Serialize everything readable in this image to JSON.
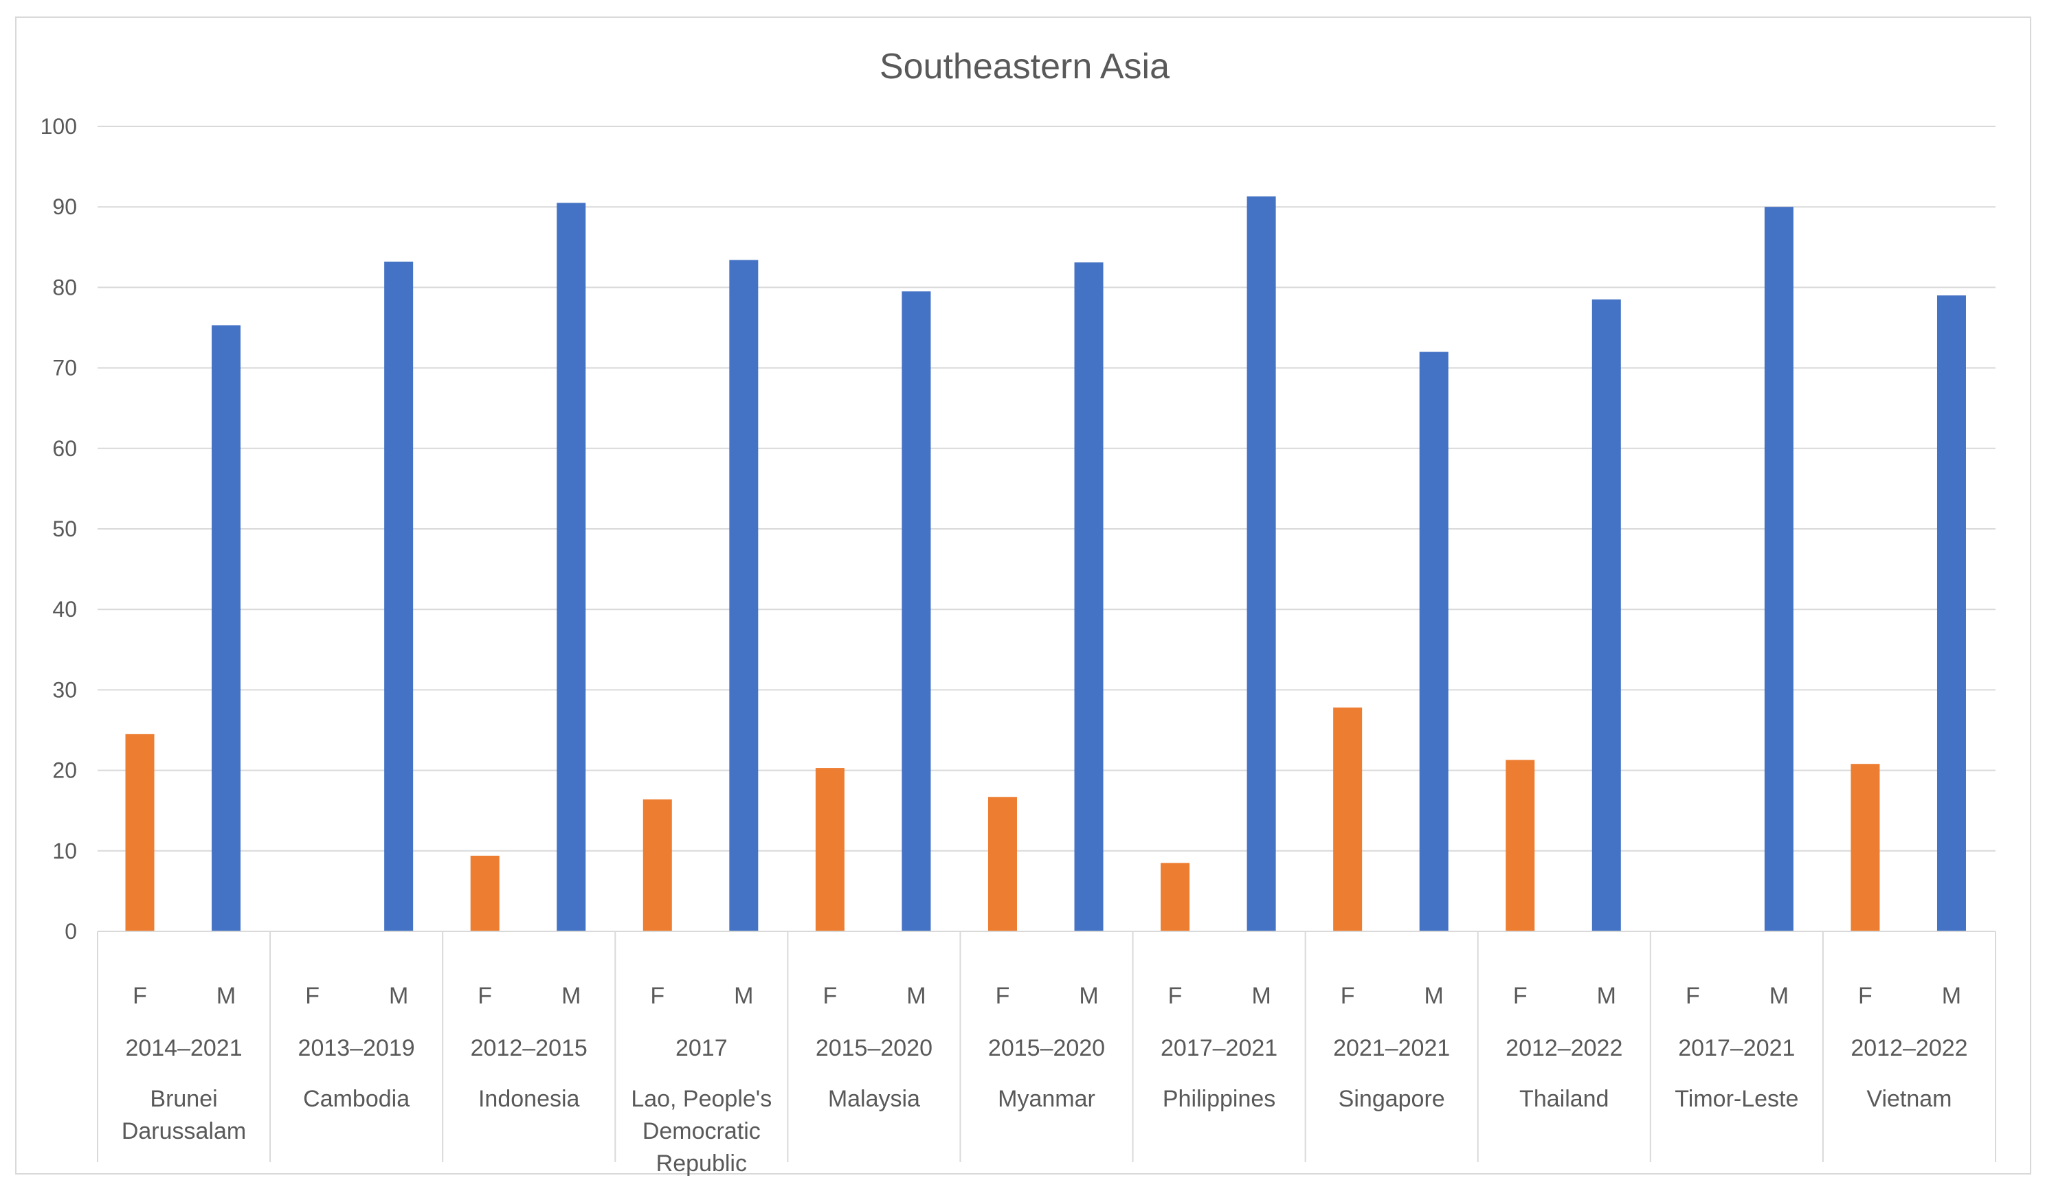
{
  "chart_data": {
    "type": "bar",
    "title": "Southeastern Asia",
    "xlabel": "",
    "ylabel": "",
    "ylim": [
      0,
      100
    ],
    "yticks": [
      0,
      10,
      20,
      30,
      40,
      50,
      60,
      70,
      80,
      90,
      100
    ],
    "grid": true,
    "legend": "none",
    "colors": {
      "F": "#ED7D31",
      "M": "#4472C4",
      "grid": "#D9D9D9",
      "axis": "#D9D9D9",
      "text": "#595959"
    },
    "groups": [
      {
        "country": "Brunei Darussalam",
        "country_lines": [
          "Brunei",
          "Darussalam"
        ],
        "period": "2014–2021",
        "F": 24.5,
        "M": 75.3
      },
      {
        "country": "Cambodia",
        "country_lines": [
          "Cambodia"
        ],
        "period": "2013–2019",
        "F": null,
        "M": 83.2
      },
      {
        "country": "Indonesia",
        "country_lines": [
          "Indonesia"
        ],
        "period": "2012–2015",
        "F": 9.4,
        "M": 90.5
      },
      {
        "country": "Lao, People's Democratic Republic",
        "country_lines": [
          "Lao, People's",
          "Democratic",
          "Republic"
        ],
        "period": "2017",
        "F": 16.4,
        "M": 83.4
      },
      {
        "country": "Malaysia",
        "country_lines": [
          "Malaysia"
        ],
        "period": "2015–2020",
        "F": 20.3,
        "M": 79.5
      },
      {
        "country": "Myanmar",
        "country_lines": [
          "Myanmar"
        ],
        "period": "2015–2020",
        "F": 16.7,
        "M": 83.1
      },
      {
        "country": "Philippines",
        "country_lines": [
          "Philippines"
        ],
        "period": "2017–2021",
        "F": 8.5,
        "M": 91.3
      },
      {
        "country": "Singapore",
        "country_lines": [
          "Singapore"
        ],
        "period": "2021–2021",
        "F": 27.8,
        "M": 72.0
      },
      {
        "country": "Thailand",
        "country_lines": [
          "Thailand"
        ],
        "period": "2012–2022",
        "F": 21.3,
        "M": 78.5
      },
      {
        "country": "Timor-Leste",
        "country_lines": [
          "Timor-Leste"
        ],
        "period": "2017–2021",
        "F": null,
        "M": 90.0
      },
      {
        "country": "Vietnam",
        "country_lines": [
          "Vietnam"
        ],
        "period": "2012–2022",
        "F": 20.8,
        "M": 79.0
      }
    ],
    "sub_categories": [
      "F",
      "M"
    ]
  }
}
